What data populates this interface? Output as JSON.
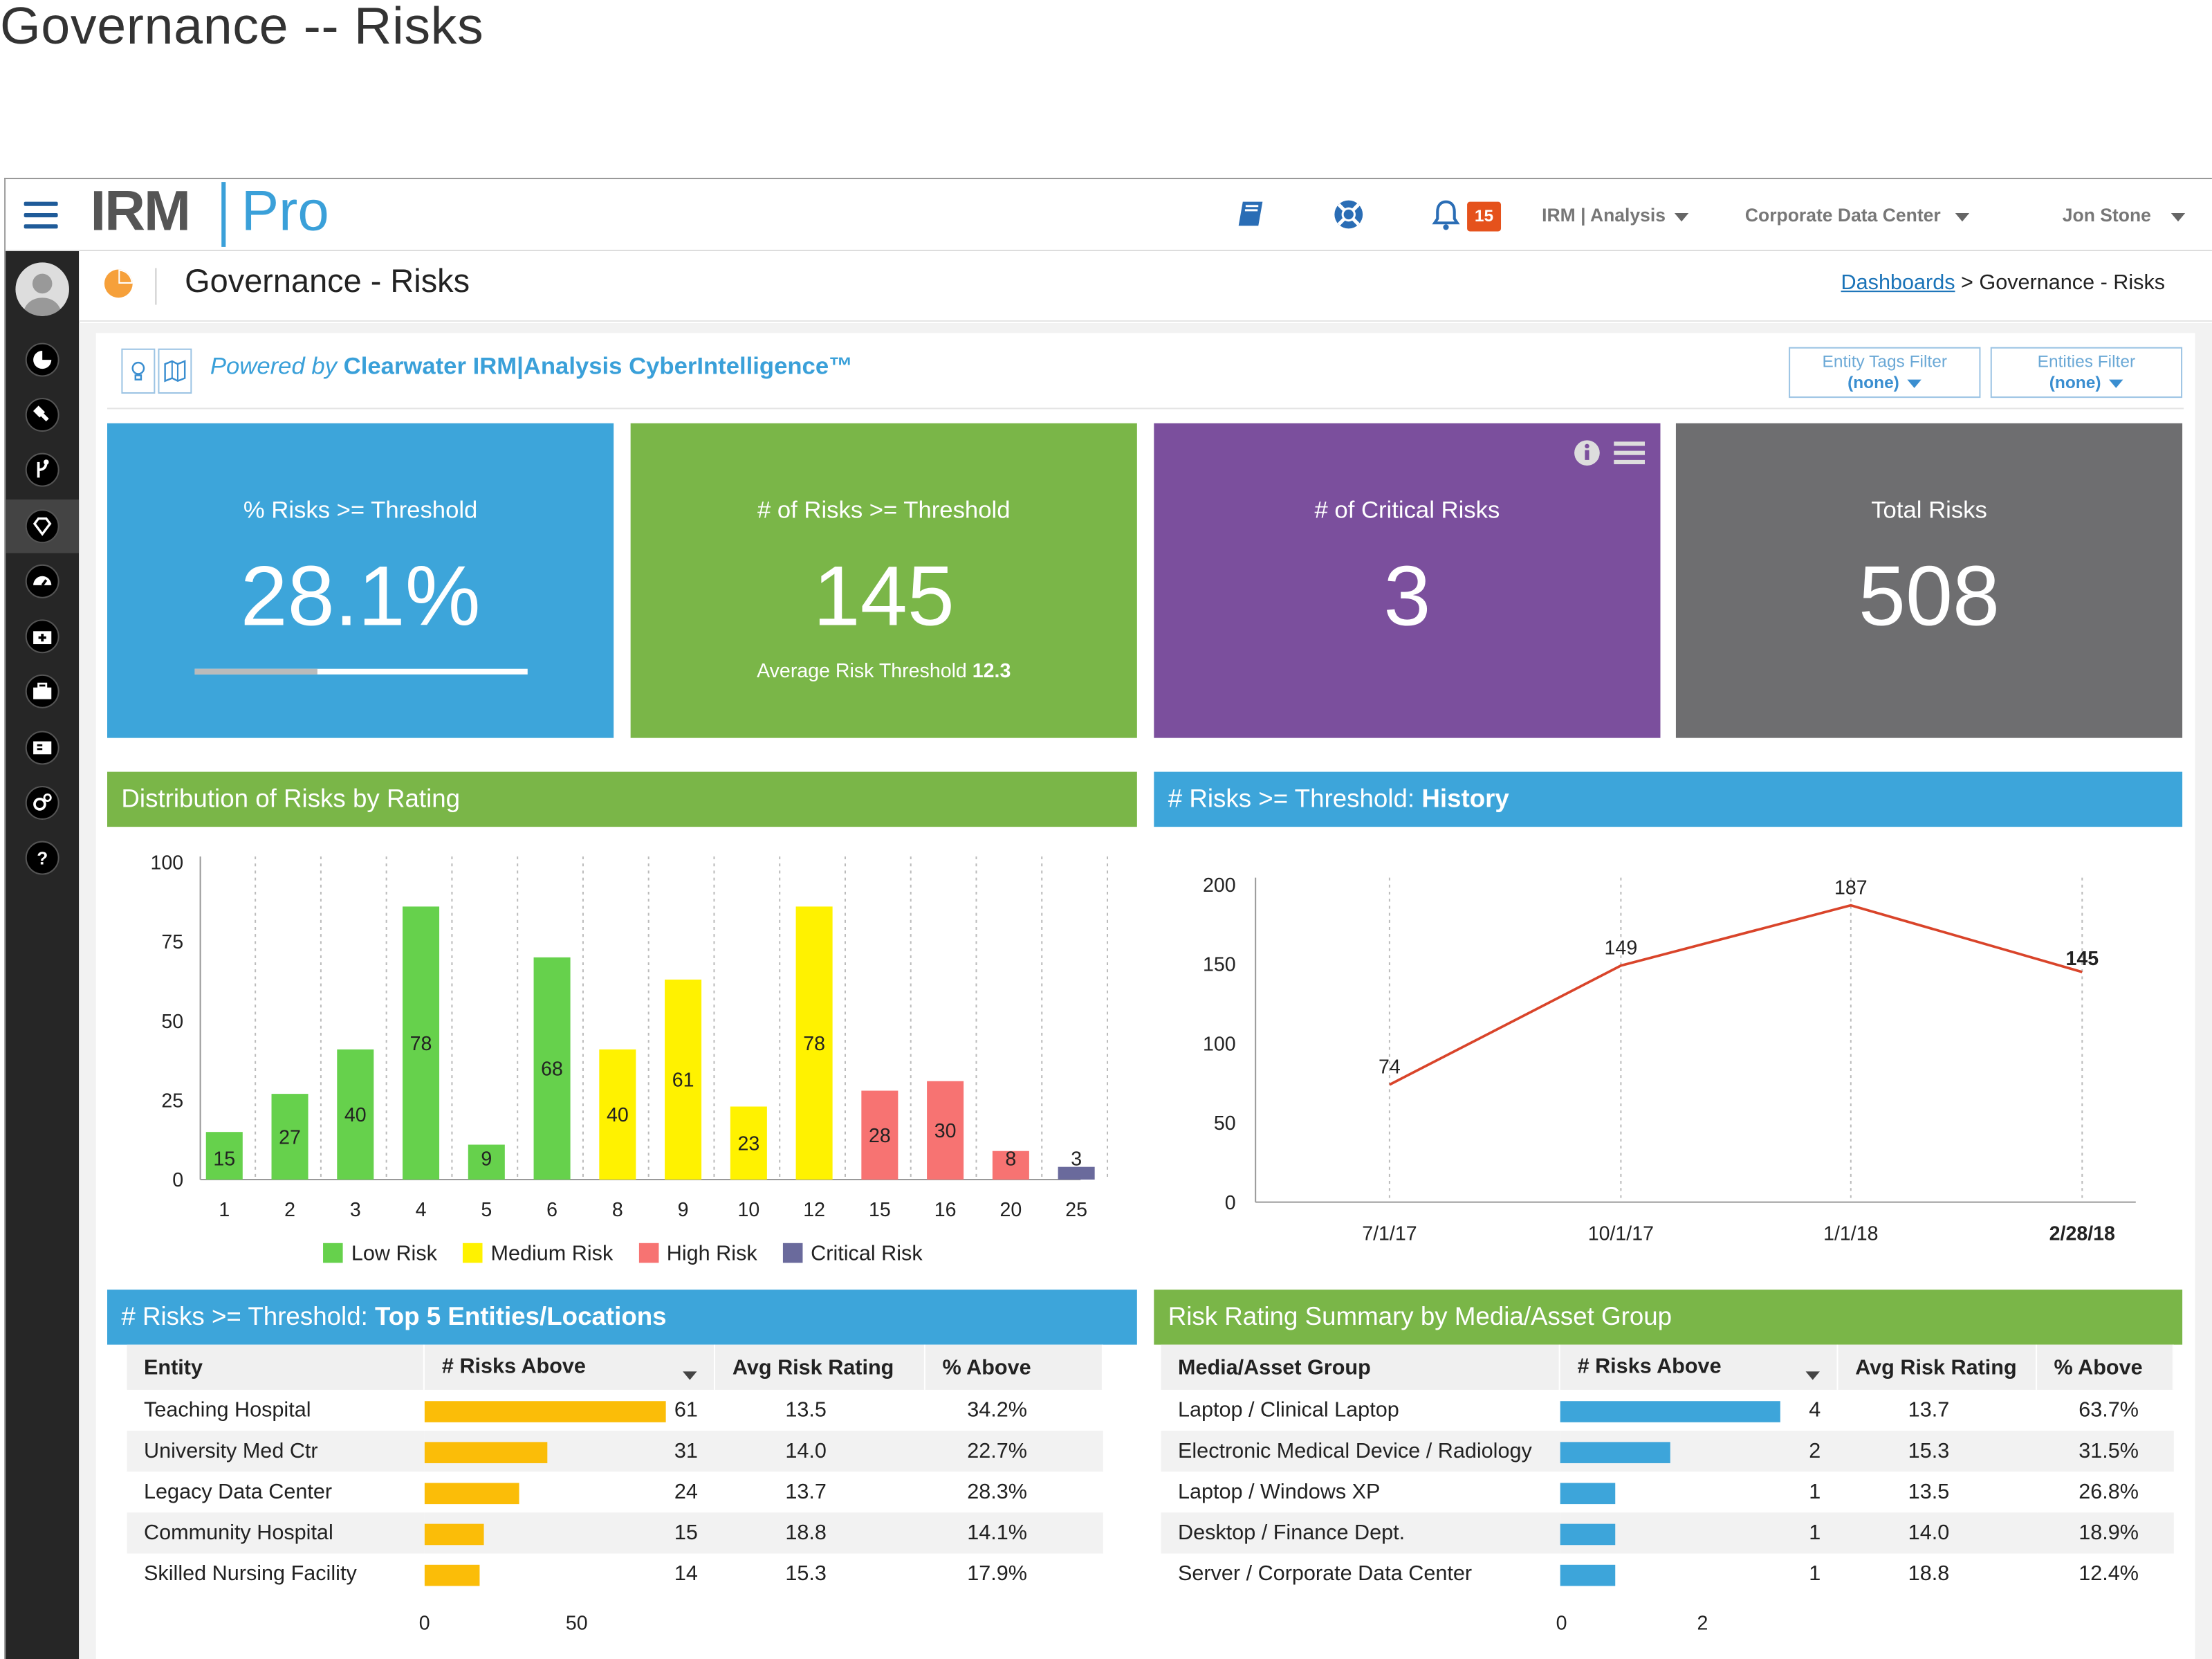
{
  "page_title": "Governance -- Risks",
  "logo": {
    "irm": "IRM",
    "pro": "Pro"
  },
  "topbar": {
    "notification_count": "15",
    "menus": [
      "IRM | Analysis",
      "Corporate Data Center",
      "Jon Stone"
    ]
  },
  "header": {
    "title": "Governance - Risks",
    "breadcrumb_link": "Dashboards",
    "breadcrumb_sep": ">",
    "breadcrumb_current": "Governance - Risks"
  },
  "powered": {
    "prefix": "Powered by",
    "brand": "Clearwater IRM|Analysis CyberIntelligence™"
  },
  "filters": [
    {
      "label": "Entity Tags Filter",
      "value": "(none)"
    },
    {
      "label": "Entities Filter",
      "value": "(none)"
    }
  ],
  "tiles": [
    {
      "label": "% Risks >= Threshold",
      "value": "28.1%",
      "progress": 0.37,
      "color": "#3da5da"
    },
    {
      "label": "# of Risks >= Threshold",
      "value": "145",
      "sub_label": "Average Risk Threshold",
      "sub_value": "12.3",
      "color": "#7ab648"
    },
    {
      "label": "# of Critical Risks",
      "value": "3",
      "color": "#7b4f9d"
    },
    {
      "label": "Total Risks",
      "value": "508",
      "color": "#6e6e70"
    }
  ],
  "dist_title": "Distribution of Risks by Rating",
  "history_title_prefix": "# Risks >= Threshold:",
  "history_title_bold": "History",
  "top5_title_prefix": "# Risks >= Threshold:",
  "top5_title_bold": "Top 5 Entities/Locations",
  "media_title": "Risk Rating Summary by Media/Asset Group",
  "legend": [
    {
      "label": "Low Risk",
      "color": "#66d14c"
    },
    {
      "label": "Medium Risk",
      "color": "#fff200"
    },
    {
      "label": "High Risk",
      "color": "#f77372"
    },
    {
      "label": "Critical Risk",
      "color": "#6a6a9c"
    }
  ],
  "chart_data": [
    {
      "type": "bar",
      "title": "Distribution of Risks by Rating",
      "categories": [
        "1",
        "2",
        "3",
        "4",
        "5",
        "6",
        "8",
        "9",
        "10",
        "12",
        "15",
        "16",
        "20",
        "25"
      ],
      "values": [
        15,
        27,
        40,
        78,
        9,
        68,
        40,
        61,
        23,
        78,
        28,
        30,
        8,
        3
      ],
      "heights": [
        15,
        27,
        41,
        86,
        11,
        70,
        41,
        63,
        23,
        86,
        28,
        31,
        9,
        4
      ],
      "risk_levels": [
        "Low",
        "Low",
        "Low",
        "Low",
        "Low",
        "Low",
        "Medium",
        "Medium",
        "Medium",
        "Medium",
        "High",
        "High",
        "High",
        "Critical"
      ],
      "ylim": [
        0,
        100
      ],
      "yticks": [
        0,
        25,
        50,
        75,
        100
      ]
    },
    {
      "type": "line",
      "title": "# Risks >= Threshold: History",
      "x": [
        "7/1/17",
        "10/1/17",
        "1/1/18",
        "2/28/18"
      ],
      "values": [
        74,
        149,
        187,
        145
      ],
      "ylim": [
        0,
        200
      ],
      "yticks": [
        0,
        50,
        100,
        150,
        200
      ]
    }
  ],
  "top5": {
    "headers": [
      "Entity",
      "# Risks Above",
      "Avg Risk Rating",
      "% Above"
    ],
    "rows": [
      {
        "name": "Teaching Hospital",
        "count": 61,
        "count_label": "61",
        "avg": "13.5",
        "pct": "34.2%"
      },
      {
        "name": "University Med Ctr",
        "count": 31,
        "count_label": "31",
        "avg": "14.0",
        "pct": "22.7%"
      },
      {
        "name": "Legacy Data Center",
        "count": 24,
        "count_label": "24",
        "avg": "13.7",
        "pct": "28.3%"
      },
      {
        "name": "Community Hospital",
        "count": 15,
        "count_label": "15",
        "avg": "18.8",
        "pct": "14.1%"
      },
      {
        "name": "Skilled Nursing Facility",
        "count": 14,
        "count_label": "14",
        "avg": "15.3",
        "pct": "17.9%"
      }
    ],
    "axis": [
      "0",
      "50"
    ],
    "bar_color": "#fbbd08"
  },
  "media": {
    "headers": [
      "Media/Asset Group",
      "# Risks Above",
      "Avg Risk Rating",
      "% Above"
    ],
    "rows": [
      {
        "name": "Laptop / Clinical Laptop",
        "count": 4,
        "count_label": "4",
        "avg": "13.7",
        "pct": "63.7%"
      },
      {
        "name": "Electronic Medical Device / Radiology",
        "count": 2,
        "count_label": "2",
        "avg": "15.3",
        "pct": "31.5%"
      },
      {
        "name": "Laptop / Windows XP",
        "count": 1,
        "count_label": "1",
        "avg": "13.5",
        "pct": "26.8%"
      },
      {
        "name": "Desktop / Finance Dept.",
        "count": 1,
        "count_label": "1",
        "avg": "14.0",
        "pct": "18.9%"
      },
      {
        "name": "Server / Corporate Data Center",
        "count": 1,
        "count_label": "1",
        "avg": "18.8",
        "pct": "12.4%"
      }
    ],
    "axis": [
      "0",
      "2"
    ],
    "bar_color": "#3da5da"
  }
}
